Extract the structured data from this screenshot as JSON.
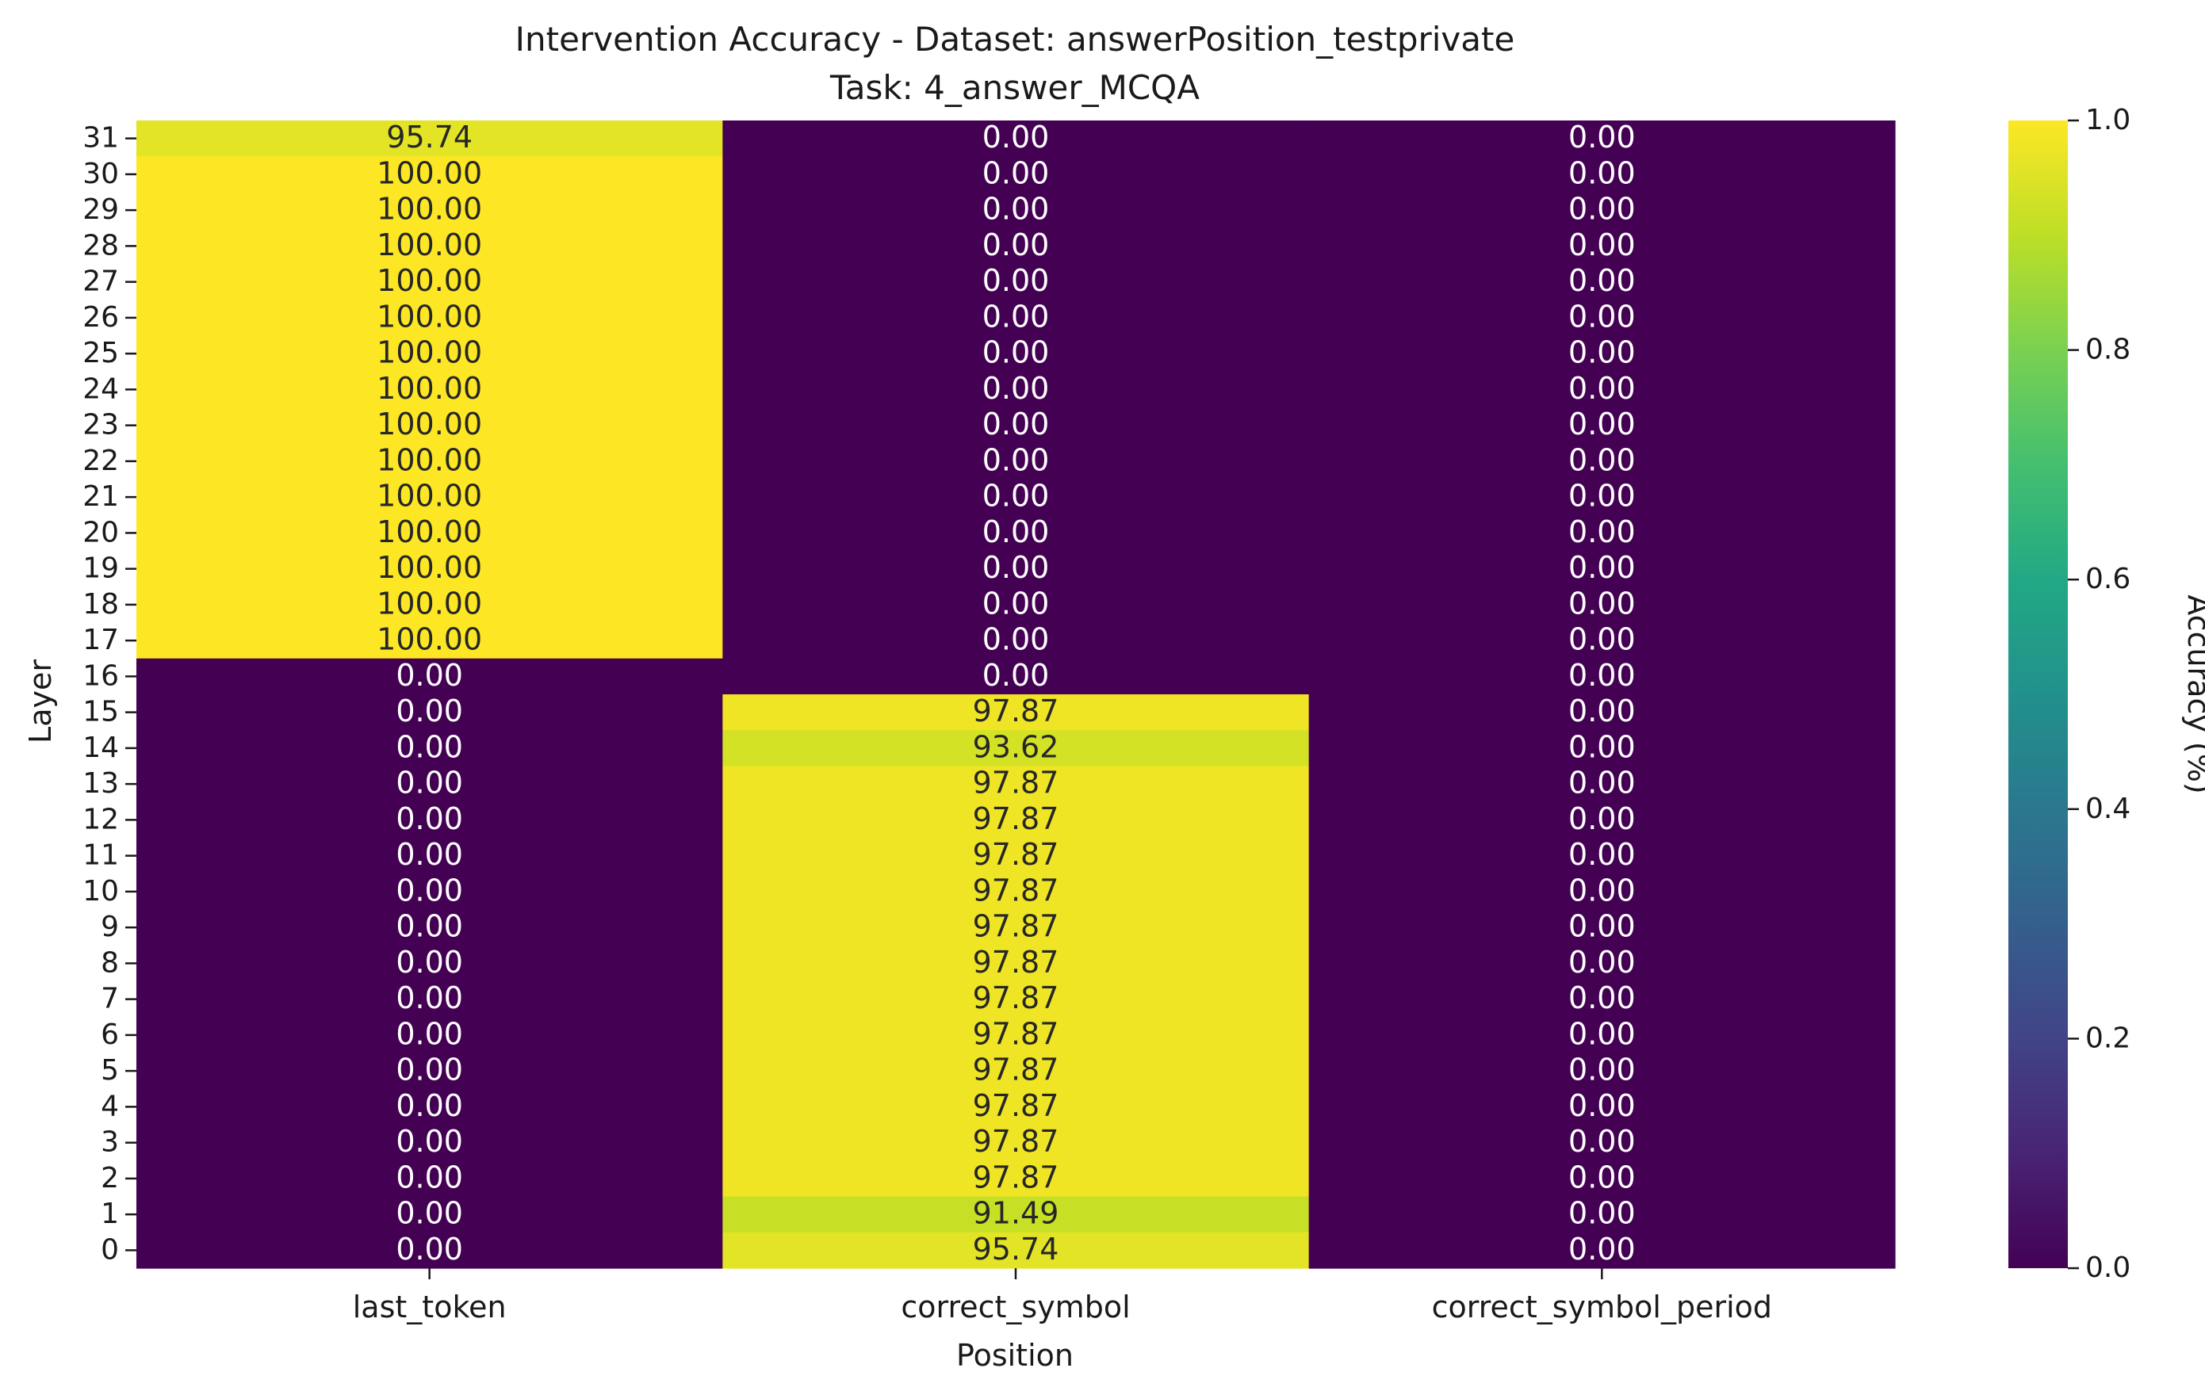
{
  "chart_data": {
    "type": "heatmap",
    "title": "Intervention Accuracy - Dataset: answerPosition_testprivate",
    "subtitle": "Task: 4_answer_MCQA",
    "xlabel": "Position",
    "ylabel": "Layer",
    "colorbar_label": "Accuracy (%)",
    "colormap": "viridis",
    "color_range": [
      0.0,
      1.0
    ],
    "colorbar_ticks": [
      "0.0",
      "0.2",
      "0.4",
      "0.6",
      "0.8",
      "1.0"
    ],
    "columns": [
      "last_token",
      "correct_symbol",
      "correct_symbol_period"
    ],
    "layers": [
      "31",
      "30",
      "29",
      "28",
      "27",
      "26",
      "25",
      "24",
      "23",
      "22",
      "21",
      "20",
      "19",
      "18",
      "17",
      "16",
      "15",
      "14",
      "13",
      "12",
      "11",
      "10",
      "9",
      "8",
      "7",
      "6",
      "5",
      "4",
      "3",
      "2",
      "1",
      "0"
    ],
    "values": [
      [
        95.74,
        0.0,
        0.0
      ],
      [
        100.0,
        0.0,
        0.0
      ],
      [
        100.0,
        0.0,
        0.0
      ],
      [
        100.0,
        0.0,
        0.0
      ],
      [
        100.0,
        0.0,
        0.0
      ],
      [
        100.0,
        0.0,
        0.0
      ],
      [
        100.0,
        0.0,
        0.0
      ],
      [
        100.0,
        0.0,
        0.0
      ],
      [
        100.0,
        0.0,
        0.0
      ],
      [
        100.0,
        0.0,
        0.0
      ],
      [
        100.0,
        0.0,
        0.0
      ],
      [
        100.0,
        0.0,
        0.0
      ],
      [
        100.0,
        0.0,
        0.0
      ],
      [
        100.0,
        0.0,
        0.0
      ],
      [
        100.0,
        0.0,
        0.0
      ],
      [
        0.0,
        0.0,
        0.0
      ],
      [
        0.0,
        97.87,
        0.0
      ],
      [
        0.0,
        93.62,
        0.0
      ],
      [
        0.0,
        97.87,
        0.0
      ],
      [
        0.0,
        97.87,
        0.0
      ],
      [
        0.0,
        97.87,
        0.0
      ],
      [
        0.0,
        97.87,
        0.0
      ],
      [
        0.0,
        97.87,
        0.0
      ],
      [
        0.0,
        97.87,
        0.0
      ],
      [
        0.0,
        97.87,
        0.0
      ],
      [
        0.0,
        97.87,
        0.0
      ],
      [
        0.0,
        97.87,
        0.0
      ],
      [
        0.0,
        97.87,
        0.0
      ],
      [
        0.0,
        97.87,
        0.0
      ],
      [
        0.0,
        97.87,
        0.0
      ],
      [
        0.0,
        91.49,
        0.0
      ],
      [
        0.0,
        95.74,
        0.0
      ]
    ]
  }
}
